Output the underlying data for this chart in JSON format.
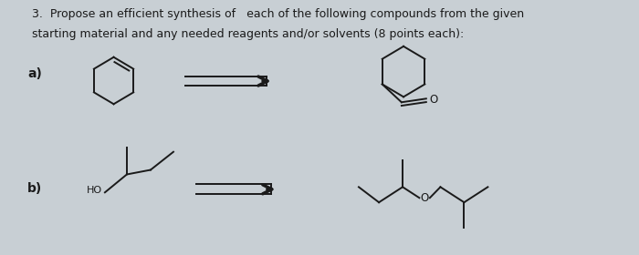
{
  "bg_color": "#c8cfd4",
  "title_line1": "3.  Propose an efficient synthesis of   each of the following compounds from the given",
  "title_line2": "starting material and any needed reagents and/or solvents (8 points each):",
  "label_a": "a)",
  "label_b": "b)",
  "text_color": "#1a1a1a",
  "font_size_title": 9.0,
  "font_size_label": 10,
  "ho_label": "HO",
  "o_label_a": "O",
  "o_label_b": "O"
}
